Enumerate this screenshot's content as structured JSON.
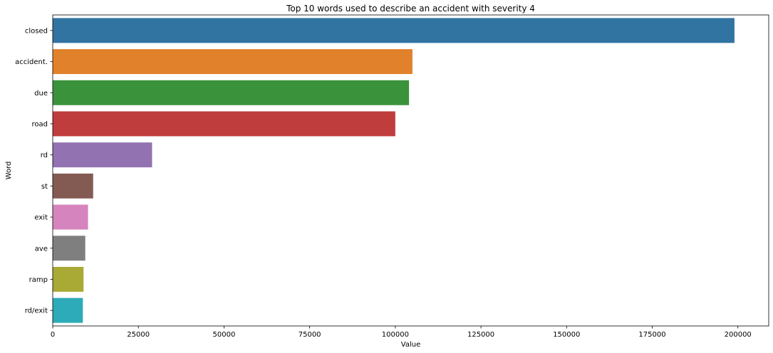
{
  "chart_data": {
    "type": "bar",
    "orientation": "horizontal",
    "title": "Top 10 words used to describe an accident with severity 4",
    "xlabel": "Value",
    "ylabel": "Word",
    "categories": [
      "closed",
      "accident.",
      "due",
      "road",
      "rd",
      "st",
      "exit",
      "ave",
      "ramp",
      "rd/exit"
    ],
    "values": [
      199000,
      105000,
      104000,
      100000,
      29000,
      11800,
      10300,
      9500,
      9000,
      8800
    ],
    "colors": [
      "#3274a1",
      "#e1812c",
      "#3a923a",
      "#c03d3e",
      "#9372b2",
      "#845b53",
      "#d684bd",
      "#7f7f7f",
      "#a9aa35",
      "#2eabb8"
    ],
    "xlim": [
      0,
      209000
    ],
    "xticks": [
      0,
      25000,
      50000,
      75000,
      100000,
      125000,
      150000,
      175000,
      200000
    ],
    "xtick_labels": [
      "0",
      "25000",
      "50000",
      "75000",
      "100000",
      "125000",
      "150000",
      "175000",
      "200000"
    ],
    "grid": false,
    "legend": "none"
  }
}
